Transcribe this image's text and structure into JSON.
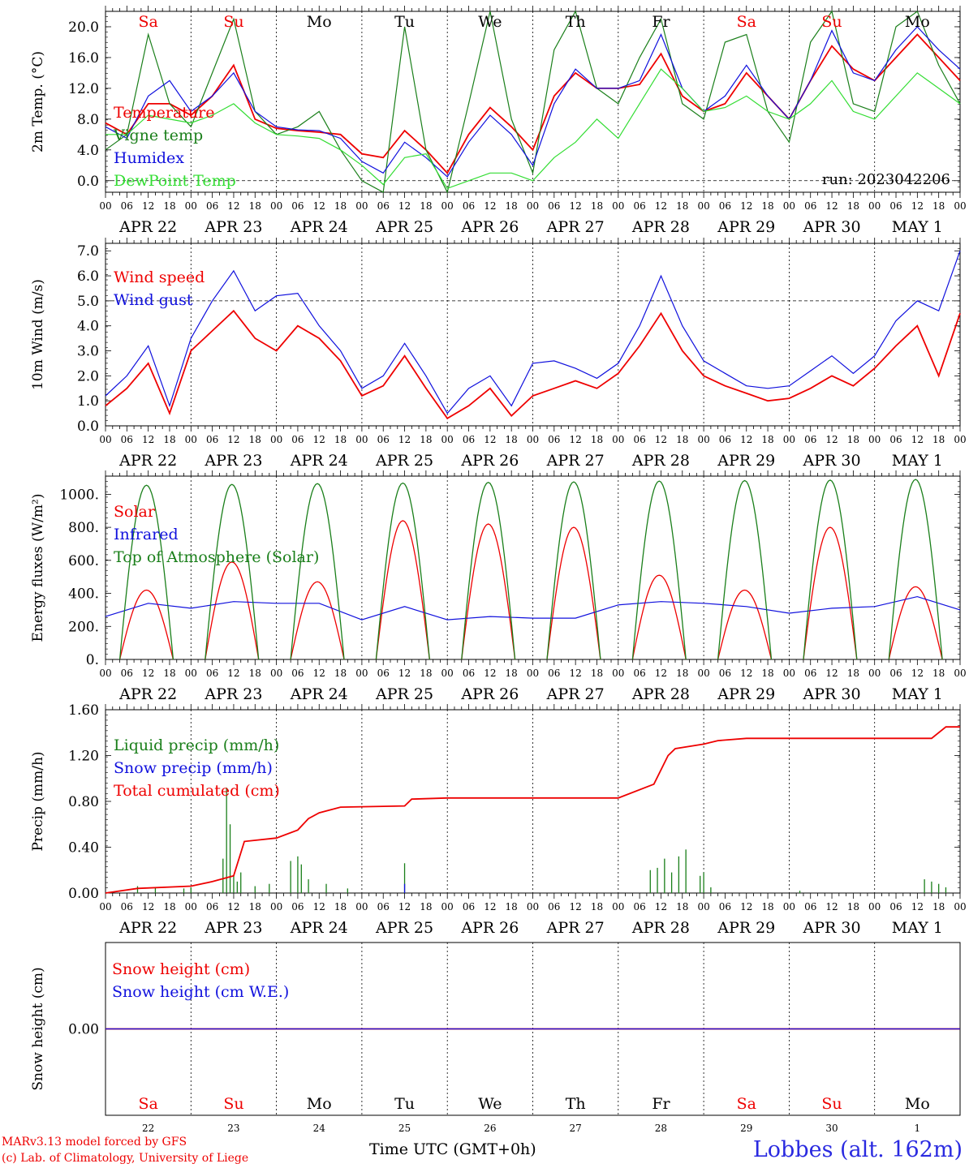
{
  "footer": {
    "credit_line1": "MARv3.13 model forced by GFS",
    "credit_line2": "(c) Lab. of Climatology, University of Liege",
    "xaxis_title": "Time UTC (GMT+0h)",
    "station": "Lobbes (alt. 162m)"
  },
  "colors": {
    "red": "#ee0000",
    "blue": "#1010dd",
    "green": "#1a7f1a",
    "lime": "#33dd33",
    "purple": "#800080"
  },
  "chart_data": {
    "days": [
      {
        "abbr": "Sa",
        "weekend": true,
        "date": "APR 22",
        "num": "22"
      },
      {
        "abbr": "Su",
        "weekend": true,
        "date": "APR 23",
        "num": "23"
      },
      {
        "abbr": "Mo",
        "weekend": false,
        "date": "APR 24",
        "num": "24"
      },
      {
        "abbr": "Tu",
        "weekend": false,
        "date": "APR 25",
        "num": "25"
      },
      {
        "abbr": "We",
        "weekend": false,
        "date": "APR 26",
        "num": "26"
      },
      {
        "abbr": "Th",
        "weekend": false,
        "date": "APR 27",
        "num": "27"
      },
      {
        "abbr": "Fr",
        "weekend": false,
        "date": "APR 28",
        "num": "28"
      },
      {
        "abbr": "Sa",
        "weekend": true,
        "date": "APR 29",
        "num": "29"
      },
      {
        "abbr": "Su",
        "weekend": true,
        "date": "APR 30",
        "num": "30"
      },
      {
        "abbr": "Mo",
        "weekend": false,
        "date": "MAY  1",
        "num": "1"
      }
    ],
    "hour_ticks": [
      "00",
      "06",
      "12",
      "18"
    ],
    "hour_end_label": "00",
    "panels": [
      {
        "type": "line",
        "ylabel": "2m Temp. (°C)",
        "ylim": [
          -1.5,
          22
        ],
        "yticks": [
          0,
          4,
          8,
          12,
          16,
          20
        ],
        "ytick_labels": [
          "0.0",
          "4.0",
          "8.0",
          "12.0",
          "16.0",
          "20.0"
        ],
        "dashed_y": 0,
        "day_labels_top": true,
        "run_label": "run: 2023042206",
        "series": [
          {
            "name": "Temperature",
            "color": "red",
            "x": [
              0,
              6,
              12,
              18,
              24,
              30,
              36,
              42,
              48,
              54,
              60,
              66,
              72,
              78,
              84,
              90,
              96,
              102,
              108,
              114,
              120,
              126,
              132,
              138,
              144,
              150,
              156,
              162,
              168,
              174,
              180,
              186,
              192,
              198,
              204,
              210,
              216,
              222,
              228,
              234,
              240
            ],
            "values": [
              7.5,
              6,
              10,
              10,
              8.5,
              11,
              15,
              8,
              6.8,
              6.5,
              6.3,
              6,
              3.5,
              3,
              6.5,
              4,
              1,
              6,
              9.5,
              7,
              4,
              11,
              14,
              12,
              12,
              12.5,
              16.5,
              11,
              9,
              10,
              14,
              11,
              8,
              13,
              17.5,
              14.5,
              13,
              16,
              19,
              16,
              13
            ]
          },
          {
            "name": "Vigne temp",
            "color": "green",
            "x": [
              0,
              6,
              12,
              18,
              24,
              30,
              36,
              42,
              48,
              54,
              60,
              66,
              72,
              78,
              84,
              90,
              96,
              102,
              108,
              114,
              120,
              126,
              132,
              138,
              144,
              150,
              156,
              162,
              168,
              174,
              180,
              186,
              192,
              198,
              204,
              210,
              216,
              222,
              228,
              234,
              240
            ],
            "values": [
              4,
              6,
              19,
              10,
              7,
              14,
              21,
              9,
              6,
              7,
              9,
              4,
              0,
              -1.5,
              20,
              4,
              -1.5,
              10,
              22,
              8,
              1,
              17,
              22,
              12,
              10,
              16,
              21,
              10,
              8,
              18,
              19,
              9,
              5,
              18,
              22,
              10,
              9,
              20,
              22,
              15,
              10
            ]
          },
          {
            "name": "Humidex",
            "color": "blue",
            "x": [
              0,
              6,
              12,
              18,
              24,
              30,
              36,
              42,
              48,
              54,
              60,
              66,
              72,
              78,
              84,
              90,
              96,
              102,
              108,
              114,
              120,
              126,
              132,
              138,
              144,
              150,
              156,
              162,
              168,
              174,
              180,
              186,
              192,
              198,
              204,
              210,
              216,
              222,
              228,
              234,
              240
            ],
            "values": [
              7,
              5.5,
              11,
              13,
              9,
              11,
              14,
              9,
              7,
              6.6,
              6.5,
              5.5,
              2.5,
              1,
              5,
              3,
              0.5,
              5,
              8.5,
              6,
              2,
              10,
              14.5,
              12,
              12,
              13,
              19,
              12,
              9,
              11,
              15,
              11,
              8,
              13,
              19.5,
              14,
              13,
              17,
              20,
              17,
              14.5
            ]
          },
          {
            "name": "DewPoint Temp",
            "color": "lime",
            "x": [
              0,
              6,
              12,
              18,
              24,
              30,
              36,
              42,
              48,
              54,
              60,
              66,
              72,
              78,
              84,
              90,
              96,
              102,
              108,
              114,
              120,
              126,
              132,
              138,
              144,
              150,
              156,
              162,
              168,
              174,
              180,
              186,
              192,
              198,
              204,
              210,
              216,
              222,
              228,
              234,
              240
            ],
            "values": [
              6,
              6,
              8.5,
              8,
              7.5,
              8.5,
              10,
              7.5,
              6,
              5.8,
              5.5,
              4,
              2,
              -0.5,
              3,
              3.5,
              -1,
              0,
              1,
              1,
              0,
              3,
              5,
              8,
              5.5,
              10,
              14.5,
              12,
              9,
              9.5,
              11,
              9,
              8,
              10,
              13,
              9,
              8,
              11,
              14,
              12,
              10
            ]
          }
        ]
      },
      {
        "type": "line",
        "ylabel": "10m Wind (m/s)",
        "ylim": [
          0,
          7.3
        ],
        "yticks": [
          0,
          1,
          2,
          3,
          4,
          5,
          6,
          7
        ],
        "ytick_labels": [
          "0.0",
          "1.0",
          "2.0",
          "3.0",
          "4.0",
          "5.0",
          "6.0",
          "7.0"
        ],
        "dashed_y": 5,
        "series": [
          {
            "name": "Wind speed",
            "color": "red",
            "x": [
              0,
              6,
              12,
              18,
              24,
              30,
              36,
              42,
              48,
              54,
              60,
              66,
              72,
              78,
              84,
              90,
              96,
              102,
              108,
              114,
              120,
              126,
              132,
              138,
              144,
              150,
              156,
              162,
              168,
              174,
              180,
              186,
              192,
              198,
              204,
              210,
              216,
              222,
              228,
              234,
              240
            ],
            "values": [
              0.8,
              1.5,
              2.5,
              0.5,
              3,
              3.8,
              4.6,
              3.5,
              3,
              4,
              3.5,
              2.6,
              1.2,
              1.6,
              2.8,
              1.5,
              0.3,
              0.8,
              1.5,
              0.4,
              1.2,
              1.5,
              1.8,
              1.5,
              2.1,
              3.2,
              4.5,
              3,
              2,
              1.6,
              1.3,
              1,
              1.1,
              1.5,
              2,
              1.6,
              2.3,
              3.2,
              4,
              2,
              4.5
            ]
          },
          {
            "name": "Wind gust",
            "color": "blue",
            "x": [
              0,
              6,
              12,
              18,
              24,
              30,
              36,
              42,
              48,
              54,
              60,
              66,
              72,
              78,
              84,
              90,
              96,
              102,
              108,
              114,
              120,
              126,
              132,
              138,
              144,
              150,
              156,
              162,
              168,
              174,
              180,
              186,
              192,
              198,
              204,
              210,
              216,
              222,
              228,
              234,
              240
            ],
            "values": [
              1.2,
              2,
              3.2,
              0.8,
              3.5,
              5,
              6.2,
              4.6,
              5.2,
              5.3,
              4,
              3,
              1.5,
              2,
              3.3,
              2,
              0.5,
              1.5,
              2,
              0.8,
              2.5,
              2.6,
              2.3,
              1.9,
              2.5,
              4,
              6,
              4,
              2.6,
              2.1,
              1.6,
              1.5,
              1.6,
              2.2,
              2.8,
              2.1,
              2.8,
              4.2,
              5,
              4.6,
              7
            ]
          }
        ]
      },
      {
        "type": "line",
        "ylabel": "Energy fluxes (W/m²)",
        "ylim": [
          0,
          1110
        ],
        "yticks": [
          0,
          200,
          400,
          600,
          800,
          1000
        ],
        "ytick_labels": [
          "0.",
          "200.",
          "400.",
          "600.",
          "800.",
          "1000."
        ],
        "series": [
          {
            "name": "Solar",
            "color": "red",
            "daily_peaks": [
              420,
              590,
              470,
              840,
              820,
              800,
              510,
              420,
              800,
              440
            ]
          },
          {
            "name": "Infrared",
            "color": "blue",
            "x": [
              0,
              12,
              24,
              36,
              48,
              60,
              72,
              84,
              96,
              108,
              120,
              132,
              144,
              156,
              168,
              180,
              192,
              204,
              216,
              228,
              240
            ],
            "values": [
              260,
              340,
              310,
              350,
              340,
              340,
              240,
              320,
              240,
              260,
              250,
              250,
              330,
              350,
              340,
              320,
              280,
              310,
              320,
              380,
              300
            ]
          },
          {
            "name": "Top of Atmosphere (Solar)",
            "color": "green",
            "daily_peaks": [
              1055,
              1060,
              1065,
              1068,
              1072,
              1075,
              1080,
              1083,
              1086,
              1090
            ]
          }
        ]
      },
      {
        "type": "line",
        "ylabel": "Precip (mm/h)",
        "ylim": [
          0,
          1.6
        ],
        "yticks": [
          0,
          0.4,
          0.8,
          1.2,
          1.6
        ],
        "ytick_labels": [
          "0.00",
          "0.40",
          "0.80",
          "1.20",
          "1.60"
        ],
        "series": [
          {
            "name": "Liquid precip (mm/h)",
            "color": "green",
            "spikes_x": [
              9,
              14,
              22,
              24,
              33,
              34,
              35,
              36,
              37,
              38,
              42,
              46,
              52,
              54,
              55,
              57,
              62,
              68,
              84,
              153,
              155,
              157,
              159,
              161,
              163,
              167,
              168,
              170,
              195,
              230,
              232,
              234,
              236
            ],
            "spikes_y": [
              0.06,
              0.05,
              0.04,
              0.05,
              0.3,
              0.92,
              0.6,
              0.15,
              0.1,
              0.18,
              0.06,
              0.08,
              0.28,
              0.32,
              0.25,
              0.12,
              0.08,
              0.04,
              0.26,
              0.2,
              0.22,
              0.3,
              0.18,
              0.32,
              0.38,
              0.15,
              0.18,
              0.05,
              0.02,
              0.12,
              0.1,
              0.08,
              0.05
            ]
          },
          {
            "name": "Snow precip (mm/h)",
            "color": "blue",
            "spikes_x": [
              84
            ],
            "spikes_y": [
              0.08
            ]
          },
          {
            "name": "Total cumulated (cm)",
            "color": "red",
            "x": [
              0,
              9,
              24,
              30,
              36,
              39,
              48,
              54,
              57,
              60,
              66,
              84,
              86,
              96,
              120,
              144,
              154,
              158,
              160,
              168,
              172,
              180,
              232,
              236,
              240
            ],
            "values": [
              0,
              0.04,
              0.06,
              0.1,
              0.15,
              0.45,
              0.48,
              0.55,
              0.65,
              0.7,
              0.75,
              0.76,
              0.82,
              0.83,
              0.83,
              0.83,
              0.95,
              1.2,
              1.26,
              1.3,
              1.33,
              1.35,
              1.35,
              1.45,
              1.45
            ]
          }
        ]
      },
      {
        "type": "line",
        "ylabel": "Snow height (cm)",
        "ylim": [
          -1,
          1
        ],
        "yticks": [
          0
        ],
        "ytick_labels": [
          "0.00"
        ],
        "day_labels_bottom": true,
        "series": [
          {
            "name": "Snow height (cm)",
            "color": "red",
            "x": [
              0,
              240
            ],
            "values": [
              0,
              0
            ]
          },
          {
            "name": "Snow height (cm W.E.)",
            "color": "blue",
            "x": [
              0,
              240
            ],
            "values": [
              0,
              0
            ]
          }
        ]
      }
    ]
  }
}
